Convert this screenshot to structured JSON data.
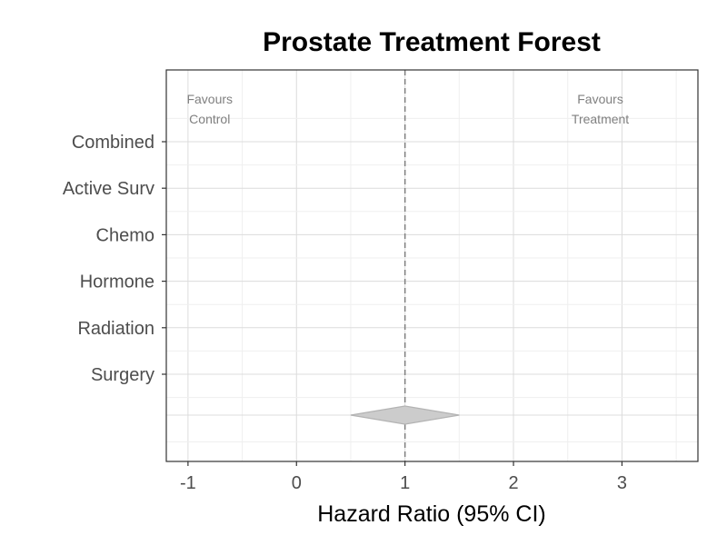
{
  "chart_data": {
    "type": "forest",
    "title": "Prostate Treatment Forest",
    "xlabel": "Hazard Ratio (95% CI)",
    "ylabel": "",
    "xlim": [
      -1.2,
      3.7
    ],
    "x_ticks": [
      -1,
      0,
      1,
      2,
      3
    ],
    "x_tick_labels": [
      "-1",
      "0",
      "1",
      "2",
      "3"
    ],
    "categories": [
      "Combined",
      "Active Surv",
      "Chemo",
      "Hormone",
      "Radiation",
      "Surgery"
    ],
    "reference_line": 1,
    "summary": {
      "estimate": 1.0,
      "ci_lower": 0.5,
      "ci_upper": 1.5
    },
    "annotations": {
      "left": [
        "Favours",
        "Control"
      ],
      "right": [
        "Favours",
        "Treatment"
      ]
    },
    "grid": true,
    "colors": {
      "diamond_fill": "#cccccc",
      "diamond_stroke": "#b3b3b3",
      "reference_line": "#808080",
      "grid_major": "#dcdcdc",
      "grid_minor": "#efefef",
      "panel_border": "#333333"
    }
  }
}
